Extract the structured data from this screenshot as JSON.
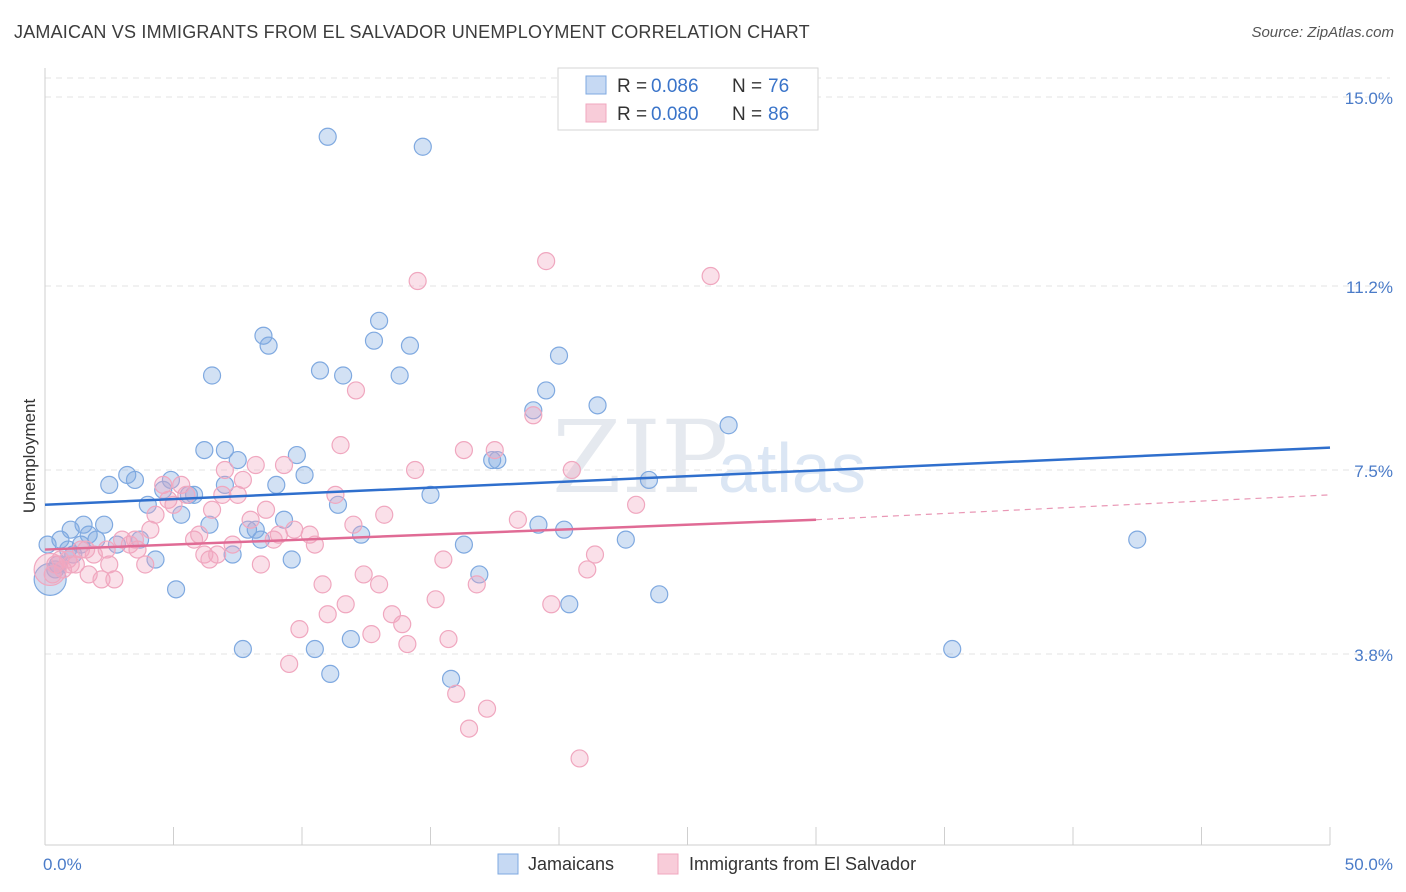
{
  "title": "JAMAICAN VS IMMIGRANTS FROM EL SALVADOR UNEMPLOYMENT CORRELATION CHART",
  "source": "Source: ZipAtlas.com",
  "watermark": {
    "zip": "ZIP",
    "atlas": "atlas"
  },
  "legend": {
    "r_label": "R =",
    "n_label": "N =",
    "rows": [
      {
        "r": "0.086",
        "n": "76"
      },
      {
        "r": "0.080",
        "n": "86"
      }
    ]
  },
  "chart_data": {
    "type": "scatter",
    "title": "JAMAICAN VS IMMIGRANTS FROM EL SALVADOR UNEMPLOYMENT CORRELATION CHART",
    "xlabel": "",
    "ylabel": "Unemployment",
    "xlim": [
      0,
      50
    ],
    "ylim": [
      0,
      15.5
    ],
    "x_tick_labels": [
      "0.0%",
      "50.0%"
    ],
    "y_tick_values": [
      3.8,
      7.5,
      11.2,
      15.0
    ],
    "y_tick_labels": [
      "3.8%",
      "7.5%",
      "11.2%",
      "15.0%"
    ],
    "grid": true,
    "legend_position": "top-center",
    "series": [
      {
        "name": "Jamaicans",
        "color": "#7fa9e0",
        "line_color": "#2f6fcd",
        "trend": {
          "x": [
            0,
            50
          ],
          "y": [
            6.8,
            7.95
          ],
          "dashed_from": null
        },
        "points": [
          [
            0.2,
            5.3
          ],
          [
            0.4,
            5.5
          ],
          [
            0.6,
            6.1
          ],
          [
            0.9,
            5.9
          ],
          [
            1.1,
            5.8
          ],
          [
            1.4,
            6.0
          ],
          [
            1.7,
            6.2
          ],
          [
            2.0,
            6.1
          ],
          [
            2.3,
            6.4
          ],
          [
            2.5,
            7.2
          ],
          [
            2.8,
            6.0
          ],
          [
            3.2,
            7.4
          ],
          [
            3.5,
            7.3
          ],
          [
            3.7,
            6.1
          ],
          [
            4.0,
            6.8
          ],
          [
            4.3,
            5.7
          ],
          [
            4.6,
            7.1
          ],
          [
            4.9,
            7.3
          ],
          [
            5.1,
            5.1
          ],
          [
            5.3,
            6.6
          ],
          [
            5.6,
            7.0
          ],
          [
            5.8,
            7.0
          ],
          [
            6.2,
            7.9
          ],
          [
            6.4,
            6.4
          ],
          [
            6.5,
            9.4
          ],
          [
            7.0,
            7.2
          ],
          [
            7.0,
            7.9
          ],
          [
            7.3,
            5.8
          ],
          [
            7.5,
            7.7
          ],
          [
            7.7,
            3.9
          ],
          [
            7.9,
            6.3
          ],
          [
            8.2,
            6.3
          ],
          [
            8.4,
            6.1
          ],
          [
            8.5,
            10.2
          ],
          [
            8.7,
            10.0
          ],
          [
            9.0,
            7.2
          ],
          [
            9.3,
            6.5
          ],
          [
            9.6,
            5.7
          ],
          [
            9.8,
            7.8
          ],
          [
            10.1,
            7.4
          ],
          [
            10.5,
            3.9
          ],
          [
            10.7,
            9.5
          ],
          [
            11.0,
            14.2
          ],
          [
            11.1,
            3.4
          ],
          [
            11.4,
            6.8
          ],
          [
            11.6,
            9.4
          ],
          [
            11.9,
            4.1
          ],
          [
            12.3,
            6.2
          ],
          [
            12.8,
            10.1
          ],
          [
            13.0,
            10.5
          ],
          [
            13.8,
            9.4
          ],
          [
            14.2,
            10.0
          ],
          [
            14.7,
            14.0
          ],
          [
            15.0,
            7.0
          ],
          [
            15.8,
            3.3
          ],
          [
            16.3,
            6.0
          ],
          [
            16.9,
            5.4
          ],
          [
            17.4,
            7.7
          ],
          [
            17.6,
            7.7
          ],
          [
            19.0,
            8.7
          ],
          [
            19.2,
            6.4
          ],
          [
            19.5,
            9.1
          ],
          [
            20.0,
            9.8
          ],
          [
            20.2,
            6.3
          ],
          [
            20.4,
            4.8
          ],
          [
            21.5,
            8.8
          ],
          [
            22.6,
            6.1
          ],
          [
            23.5,
            7.3
          ],
          [
            23.9,
            5.0
          ],
          [
            26.6,
            8.4
          ],
          [
            35.3,
            3.9
          ],
          [
            42.5,
            6.1
          ],
          [
            0.1,
            6.0
          ],
          [
            0.5,
            5.6
          ],
          [
            1.0,
            6.3
          ],
          [
            1.5,
            6.4
          ]
        ]
      },
      {
        "name": "Immigrants from El Salvador",
        "color": "#f0a7bf",
        "line_color": "#e06b95",
        "trend": {
          "x": [
            0,
            30
          ],
          "y": [
            5.9,
            6.5
          ],
          "dashed_to": {
            "x": 50,
            "y": 7.0
          }
        },
        "points": [
          [
            0.2,
            5.5
          ],
          [
            0.4,
            5.6
          ],
          [
            0.7,
            5.5
          ],
          [
            0.9,
            5.7
          ],
          [
            1.2,
            5.6
          ],
          [
            1.4,
            5.9
          ],
          [
            1.7,
            5.4
          ],
          [
            1.9,
            5.8
          ],
          [
            2.2,
            5.3
          ],
          [
            2.5,
            5.6
          ],
          [
            2.7,
            5.3
          ],
          [
            3.0,
            6.1
          ],
          [
            3.3,
            6.0
          ],
          [
            3.5,
            6.1
          ],
          [
            3.6,
            5.9
          ],
          [
            3.9,
            5.6
          ],
          [
            4.1,
            6.3
          ],
          [
            4.3,
            6.6
          ],
          [
            4.6,
            7.2
          ],
          [
            4.8,
            6.9
          ],
          [
            5.0,
            6.8
          ],
          [
            5.3,
            7.2
          ],
          [
            5.5,
            7.0
          ],
          [
            5.8,
            6.1
          ],
          [
            6.0,
            6.2
          ],
          [
            6.2,
            5.8
          ],
          [
            6.4,
            5.7
          ],
          [
            6.5,
            6.7
          ],
          [
            6.7,
            5.8
          ],
          [
            6.9,
            7.0
          ],
          [
            7.0,
            7.5
          ],
          [
            7.3,
            6.0
          ],
          [
            7.5,
            7.0
          ],
          [
            7.7,
            7.3
          ],
          [
            8.0,
            6.5
          ],
          [
            8.2,
            7.6
          ],
          [
            8.4,
            5.6
          ],
          [
            8.6,
            6.7
          ],
          [
            8.9,
            6.1
          ],
          [
            9.1,
            6.2
          ],
          [
            9.3,
            7.6
          ],
          [
            9.5,
            3.6
          ],
          [
            9.7,
            6.3
          ],
          [
            9.9,
            4.3
          ],
          [
            10.3,
            6.2
          ],
          [
            10.5,
            6.0
          ],
          [
            10.8,
            5.2
          ],
          [
            11.0,
            4.6
          ],
          [
            11.3,
            7.0
          ],
          [
            11.5,
            8.0
          ],
          [
            11.7,
            4.8
          ],
          [
            12.0,
            6.4
          ],
          [
            12.1,
            9.1
          ],
          [
            12.4,
            5.4
          ],
          [
            12.7,
            4.2
          ],
          [
            13.0,
            5.2
          ],
          [
            13.2,
            6.6
          ],
          [
            13.5,
            4.6
          ],
          [
            13.9,
            4.4
          ],
          [
            14.1,
            4.0
          ],
          [
            14.4,
            7.5
          ],
          [
            14.5,
            11.3
          ],
          [
            15.2,
            4.9
          ],
          [
            15.5,
            5.7
          ],
          [
            15.7,
            4.1
          ],
          [
            16.0,
            3.0
          ],
          [
            16.3,
            7.9
          ],
          [
            16.5,
            2.3
          ],
          [
            16.8,
            5.2
          ],
          [
            17.2,
            2.7
          ],
          [
            17.5,
            7.9
          ],
          [
            18.4,
            6.5
          ],
          [
            19.0,
            8.6
          ],
          [
            19.5,
            11.7
          ],
          [
            19.7,
            4.8
          ],
          [
            20.5,
            7.5
          ],
          [
            20.8,
            1.7
          ],
          [
            21.1,
            5.5
          ],
          [
            21.4,
            5.8
          ],
          [
            23.0,
            6.8
          ],
          [
            25.9,
            11.4
          ],
          [
            0.3,
            5.4
          ],
          [
            0.6,
            5.7
          ],
          [
            1.0,
            5.6
          ],
          [
            1.6,
            5.9
          ],
          [
            2.4,
            5.9
          ]
        ]
      }
    ]
  },
  "bottom_legend": [
    "Jamaicans",
    "Immigrants from El Salvador"
  ]
}
